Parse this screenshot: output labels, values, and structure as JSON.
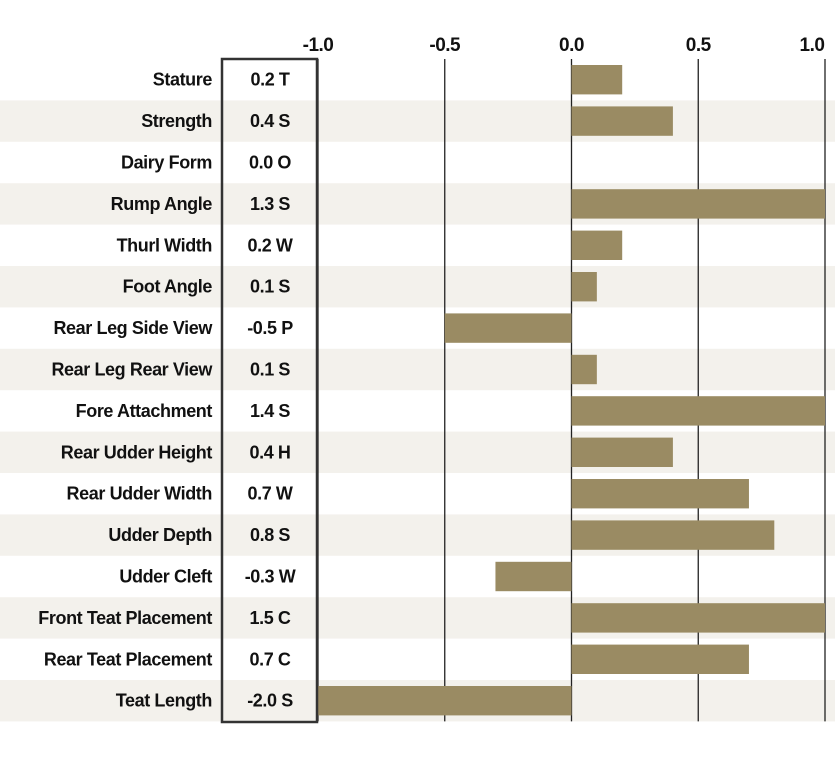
{
  "chart_data": {
    "type": "bar",
    "orientation": "horizontal",
    "title": "",
    "xlabel": "",
    "ylabel": "",
    "xlim": [
      -1.0,
      1.0
    ],
    "x_ticks": [
      "-1.0",
      "-0.5",
      "0.0",
      "0.5",
      "1.0"
    ],
    "x_tick_values": [
      -1.0,
      -0.5,
      0.0,
      0.5,
      1.0
    ],
    "categories": [
      "Stature",
      "Strength",
      "Dairy Form",
      "Rump Angle",
      "Thurl Width",
      "Foot Angle",
      "Rear Leg Side View",
      "Rear Leg Rear View",
      "Fore Attachment",
      "Rear Udder Height",
      "Rear Udder Width",
      "Udder Depth",
      "Udder Cleft",
      "Front Teat Placement",
      "Rear Teat Placement",
      "Teat Length"
    ],
    "values": [
      0.2,
      0.4,
      0.0,
      1.3,
      0.2,
      0.1,
      -0.5,
      0.1,
      1.4,
      0.4,
      0.7,
      0.8,
      -0.3,
      1.5,
      0.7,
      -2.0
    ],
    "value_labels": [
      "0.2 T",
      "0.4 S",
      "0.0 O",
      "1.3 S",
      "0.2 W",
      "0.1 S",
      "-0.5 P",
      "0.1 S",
      "1.4 S",
      "0.4 H",
      "0.7 W",
      "0.8 S",
      "-0.3 W",
      "1.5 C",
      "0.7 C",
      "-2.0 S"
    ],
    "bar_color": "#9a8b63",
    "stripe_color": "#f3f1ec",
    "grid": true
  }
}
